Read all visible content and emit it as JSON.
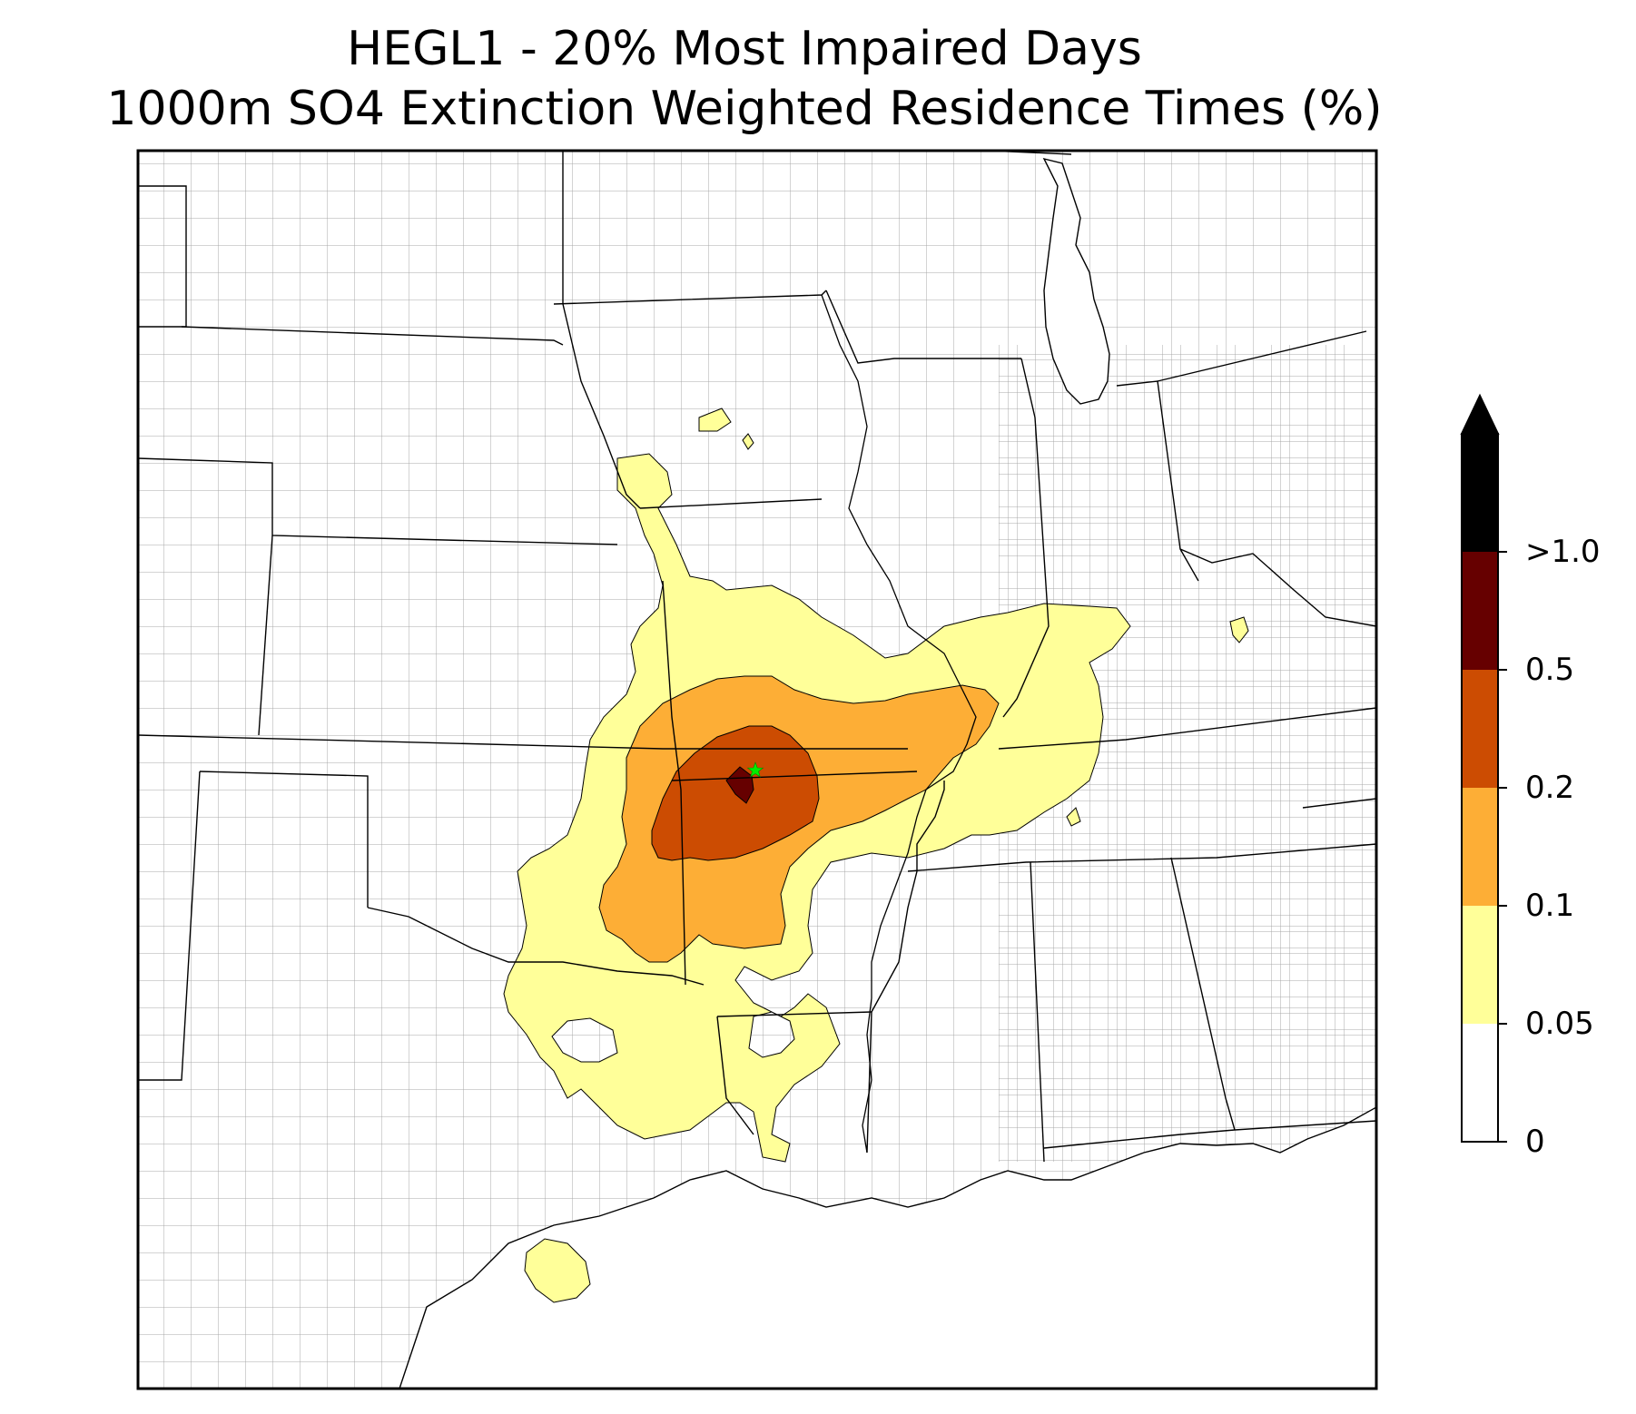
{
  "title": {
    "line1": "HEGL1 - 20% Most Impaired Days",
    "line2": "1000m SO4 Extinction Weighted Residence Times (%)"
  },
  "site_marker": {
    "symbol": "star",
    "color": "#00ee00"
  },
  "colorbar": {
    "extend": "max",
    "levels": [
      "0",
      "0.05",
      "0.1",
      "0.2",
      "0.5",
      ">1.0"
    ],
    "bins": [
      {
        "from": "0",
        "to": "0.05",
        "color": "#ffffff"
      },
      {
        "from": "0.05",
        "to": "0.1",
        "color": "#ffff99"
      },
      {
        "from": "0.1",
        "to": "0.2",
        "color": "#fdae36"
      },
      {
        "from": "0.2",
        "to": "0.5",
        "color": "#cc4c02"
      },
      {
        "from": "0.5",
        "to": "1.0",
        "color": "#660000"
      },
      {
        "from": "1.0",
        "to": "max",
        "color": "#000000"
      }
    ]
  },
  "colors": {
    "state_lines": "#000000",
    "county_lines": "#9a9a9a"
  }
}
